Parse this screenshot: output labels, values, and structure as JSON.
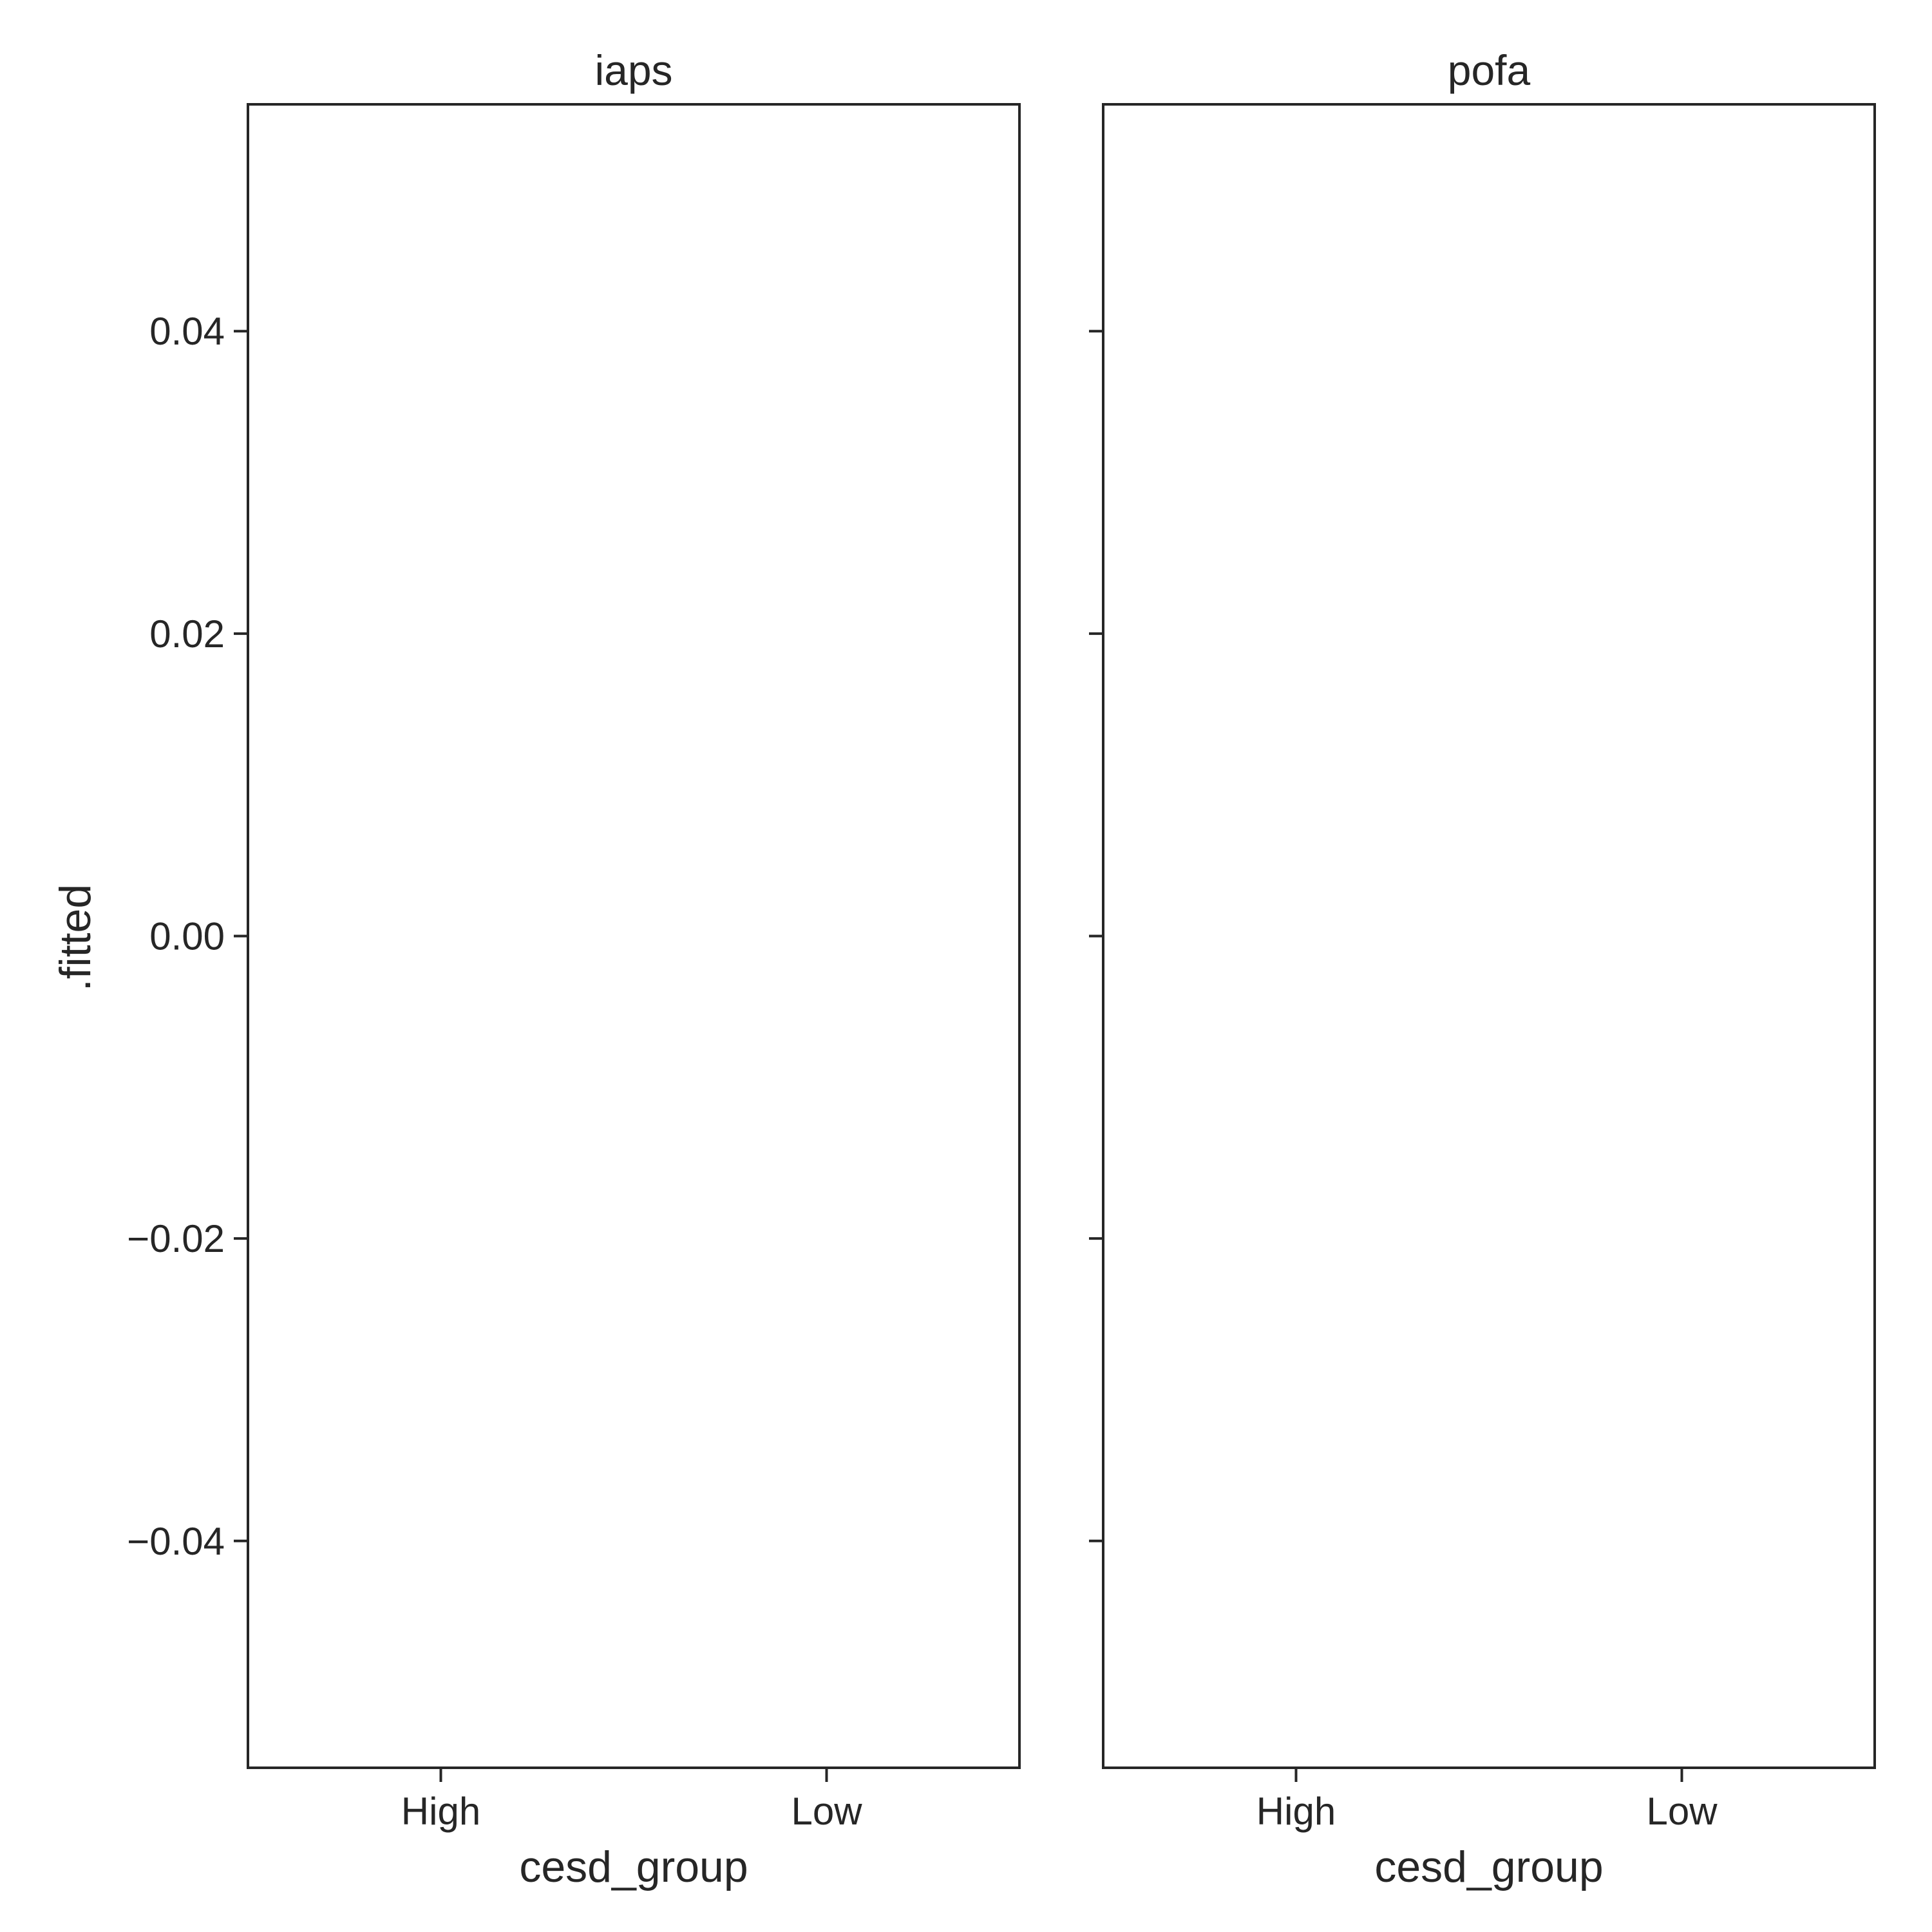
{
  "chart_data": {
    "type": "scatter",
    "facets": [
      "iaps",
      "pofa"
    ],
    "categories": [
      "High",
      "Low"
    ],
    "xlabel": "cesd_group",
    "ylabel": ".fitted",
    "ylim": [
      -0.055,
      0.055
    ],
    "yticks": [
      0.04,
      0.02,
      0.0,
      -0.02,
      -0.04
    ],
    "ytick_labels": [
      "0.04",
      "0.02",
      "0.00",
      "−0.02",
      "−0.04"
    ],
    "series": [],
    "grid": false,
    "legend": "none"
  },
  "colors": {
    "axis": "#262626",
    "background": "#ffffff"
  }
}
